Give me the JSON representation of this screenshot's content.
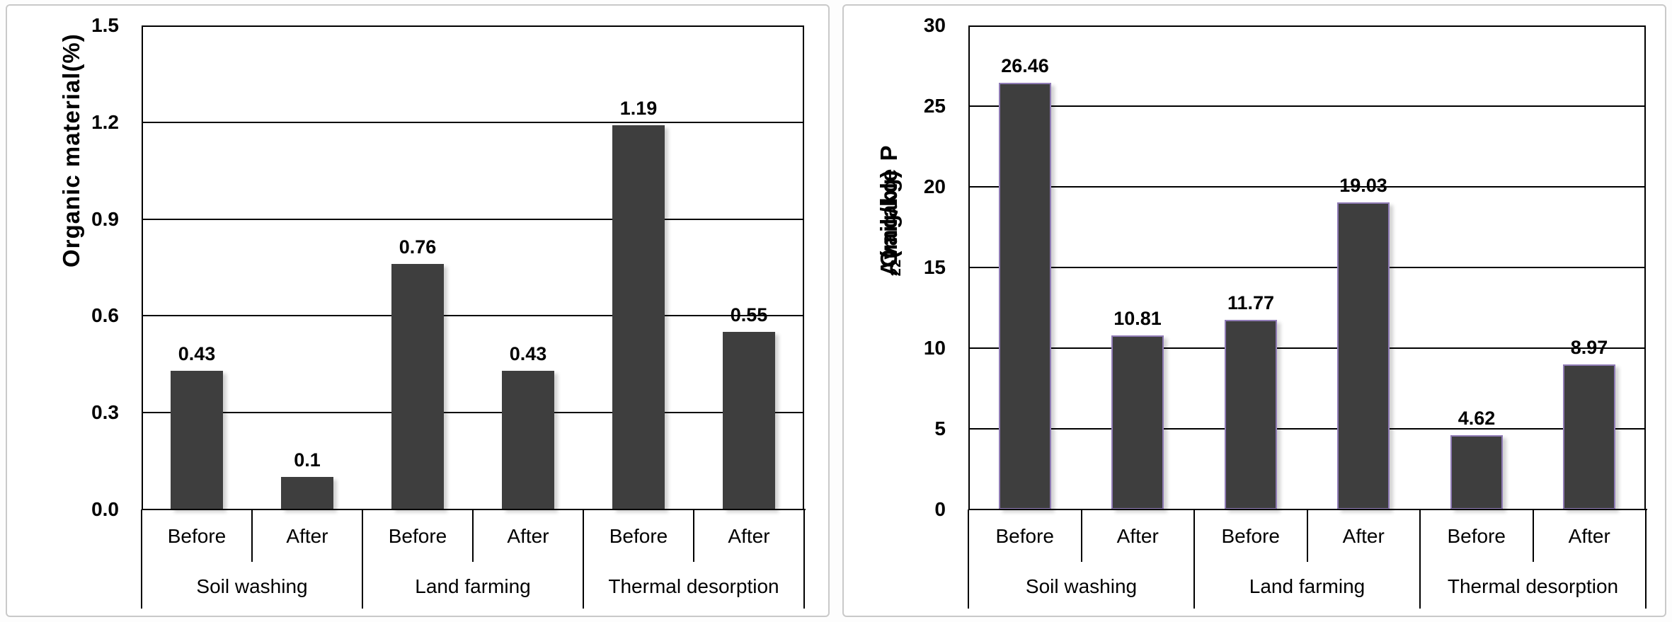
{
  "page": {
    "background": "#ffffff",
    "panel_border_color": "#c9c9c9",
    "line_color": "#000000"
  },
  "chart_data": [
    {
      "id": "organic-material",
      "type": "bar",
      "title": "",
      "ylabel": "Organic material(%)",
      "ylabel_parts": [
        {
          "text": "Organic material(%)",
          "sub": false
        }
      ],
      "ylim": [
        0,
        1.5
      ],
      "ytick_labels": [
        "0.0",
        "0.3",
        "0.6",
        "0.9",
        "1.2",
        "1.5"
      ],
      "ytick_values": [
        0,
        0.3,
        0.6,
        0.9,
        1.2,
        1.5
      ],
      "grid": true,
      "legend": "none",
      "bar_fill": "#3e3e3e",
      "bar_stroke": "",
      "groups": [
        {
          "label": "Soil washing",
          "items": [
            {
              "category": "Before",
              "value": 0.43,
              "label": "0.43"
            },
            {
              "category": "After",
              "value": 0.1,
              "label": "0.1"
            }
          ]
        },
        {
          "label": "Land farming",
          "items": [
            {
              "category": "Before",
              "value": 0.76,
              "label": "0.76"
            },
            {
              "category": "After",
              "value": 0.43,
              "label": "0.43"
            }
          ]
        },
        {
          "label": "Thermal desorption",
          "items": [
            {
              "category": "Before",
              "value": 1.19,
              "label": "1.19"
            },
            {
              "category": "After",
              "value": 0.55,
              "label": "0.55"
            }
          ]
        }
      ]
    },
    {
      "id": "available-p2o2",
      "type": "bar",
      "title": "",
      "ylabel": "Available P2O2(mg/kg)",
      "ylabel_parts": [
        {
          "text": "Available P",
          "sub": false
        },
        {
          "text": "2",
          "sub": true
        },
        {
          "text": "O",
          "sub": false
        },
        {
          "text": "2",
          "sub": true
        },
        {
          "text": "(mg/kg)",
          "sub": false
        }
      ],
      "ylim": [
        0,
        30
      ],
      "ytick_labels": [
        "0",
        "5",
        "10",
        "15",
        "20",
        "25",
        "30"
      ],
      "ytick_values": [
        0,
        5,
        10,
        15,
        20,
        25,
        30
      ],
      "grid": true,
      "legend": "none",
      "bar_fill": "#3e3e3e",
      "bar_stroke": "#8f7bb5",
      "groups": [
        {
          "label": "Soil washing",
          "items": [
            {
              "category": "Before",
              "value": 26.46,
              "label": "26.46"
            },
            {
              "category": "After",
              "value": 10.81,
              "label": "10.81"
            }
          ]
        },
        {
          "label": "Land farming",
          "items": [
            {
              "category": "Before",
              "value": 11.77,
              "label": "11.77"
            },
            {
              "category": "After",
              "value": 19.03,
              "label": "19.03"
            }
          ]
        },
        {
          "label": "Thermal desorption",
          "items": [
            {
              "category": "Before",
              "value": 4.62,
              "label": "4.62"
            },
            {
              "category": "After",
              "value": 8.97,
              "label": "8.97"
            }
          ]
        }
      ]
    }
  ]
}
